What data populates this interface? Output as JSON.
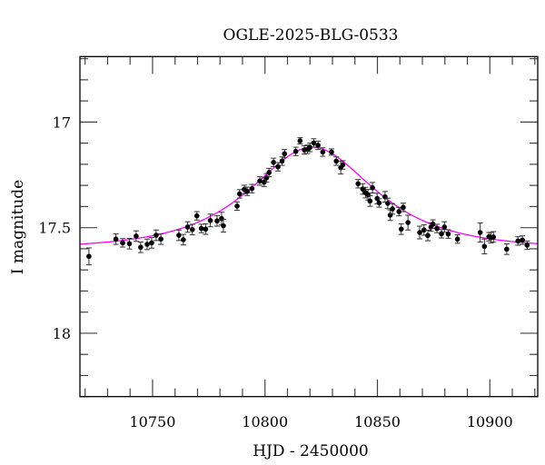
{
  "chart_data": {
    "type": "scatter",
    "title": "OGLE-2025-BLG-0533",
    "xlabel": "HJD - 2450000",
    "ylabel": "I magnitude",
    "xlim": [
      10717.7,
      10921.3
    ],
    "ylim": [
      18.3,
      16.69
    ],
    "y_inverted": true,
    "grid": false,
    "x_major_ticks": [
      10750,
      10800,
      10850,
      10900
    ],
    "x_tick_labels": [
      "10750",
      "10800",
      "10850",
      "10900"
    ],
    "x_minor_step": 10,
    "y_major_ticks": [
      17,
      17.5,
      18
    ],
    "y_tick_labels": [
      "17",
      "17.5",
      "18"
    ],
    "y_minor_step": 0.1,
    "colors": {
      "points": "#000000",
      "errorbars": "#333333",
      "model": "#ff00ff"
    },
    "series": [
      {
        "type": "scatter-errorbar",
        "x": [
          10721.7,
          10733.7,
          10736.7,
          10739.7,
          10742.7,
          10744.7,
          10747.6,
          10749.6,
          10751.6,
          10753.7,
          10761.7,
          10763.7,
          10765.6,
          10767.7,
          10769.7,
          10771.7,
          10773.6,
          10775.7,
          10778.7,
          10780.7,
          10781.5,
          10787.6,
          10788.7,
          10790.8,
          10792.1,
          10794.2,
          10797.7,
          10799.6,
          10800.7,
          10801.8,
          10803.8,
          10805.8,
          10807.6,
          10808.7,
          10813.7,
          10815.6,
          10817.5,
          10818.9,
          10820.0,
          10821.7,
          10823.6,
          10825.7,
          10829.6,
          10831.7,
          10833.7,
          10834.6,
          10841.4,
          10843.5,
          10844.7,
          10845.8,
          10846.7,
          10847.8,
          10849.9,
          10850.8,
          10853.4,
          10854.6,
          10855.7,
          10856.7,
          10859.6,
          10860.6,
          10861.5,
          10863.6,
          10868.8,
          10870.7,
          10872.4,
          10873.8,
          10874.7,
          10876.5,
          10878.5,
          10879.8,
          10881.5,
          10885.6,
          10895.7,
          10897.6,
          10899.6,
          10900.5,
          10901.6,
          10907.5,
          10912.5,
          10914.5,
          10916.6
        ],
        "y": [
          17.636,
          17.554,
          17.572,
          17.576,
          17.54,
          17.593,
          17.579,
          17.572,
          17.536,
          17.554,
          17.536,
          17.557,
          17.497,
          17.509,
          17.444,
          17.504,
          17.507,
          17.466,
          17.468,
          17.457,
          17.491,
          17.398,
          17.34,
          17.319,
          17.328,
          17.315,
          17.279,
          17.285,
          17.264,
          17.239,
          17.191,
          17.212,
          17.185,
          17.15,
          17.139,
          17.089,
          17.132,
          17.129,
          17.12,
          17.099,
          17.11,
          17.142,
          17.142,
          17.185,
          17.216,
          17.203,
          17.292,
          17.317,
          17.334,
          17.344,
          17.374,
          17.311,
          17.362,
          17.383,
          17.354,
          17.385,
          17.441,
          17.411,
          17.424,
          17.507,
          17.404,
          17.476,
          17.523,
          17.511,
          17.537,
          17.497,
          17.483,
          17.504,
          17.529,
          17.497,
          17.53,
          17.554,
          17.523,
          17.589,
          17.543,
          17.547,
          17.544,
          17.602,
          17.563,
          17.559,
          17.583
        ],
        "err": [
          0.04,
          0.025,
          0.02,
          0.025,
          0.025,
          0.025,
          0.025,
          0.025,
          0.025,
          0.025,
          0.025,
          0.025,
          0.025,
          0.025,
          0.02,
          0.02,
          0.025,
          0.03,
          0.025,
          0.03,
          0.03,
          0.02,
          0.02,
          0.02,
          0.02,
          0.02,
          0.02,
          0.02,
          0.02,
          0.02,
          0.02,
          0.02,
          0.02,
          0.02,
          0.02,
          0.015,
          0.02,
          0.02,
          0.02,
          0.02,
          0.02,
          0.02,
          0.015,
          0.02,
          0.03,
          0.02,
          0.02,
          0.025,
          0.025,
          0.025,
          0.025,
          0.025,
          0.025,
          0.02,
          0.025,
          0.025,
          0.025,
          0.025,
          0.02,
          0.025,
          0.02,
          0.035,
          0.03,
          0.025,
          0.025,
          0.02,
          0.02,
          0.02,
          0.02,
          0.025,
          0.02,
          0.02,
          0.045,
          0.035,
          0.02,
          0.025,
          0.025,
          0.025,
          0.02,
          0.02,
          0.02
        ]
      },
      {
        "type": "model-curve",
        "model": {
          "t0": 10821.0,
          "tE": 38.0,
          "u0": 0.78,
          "baseline_mag": 17.6
        }
      }
    ]
  }
}
